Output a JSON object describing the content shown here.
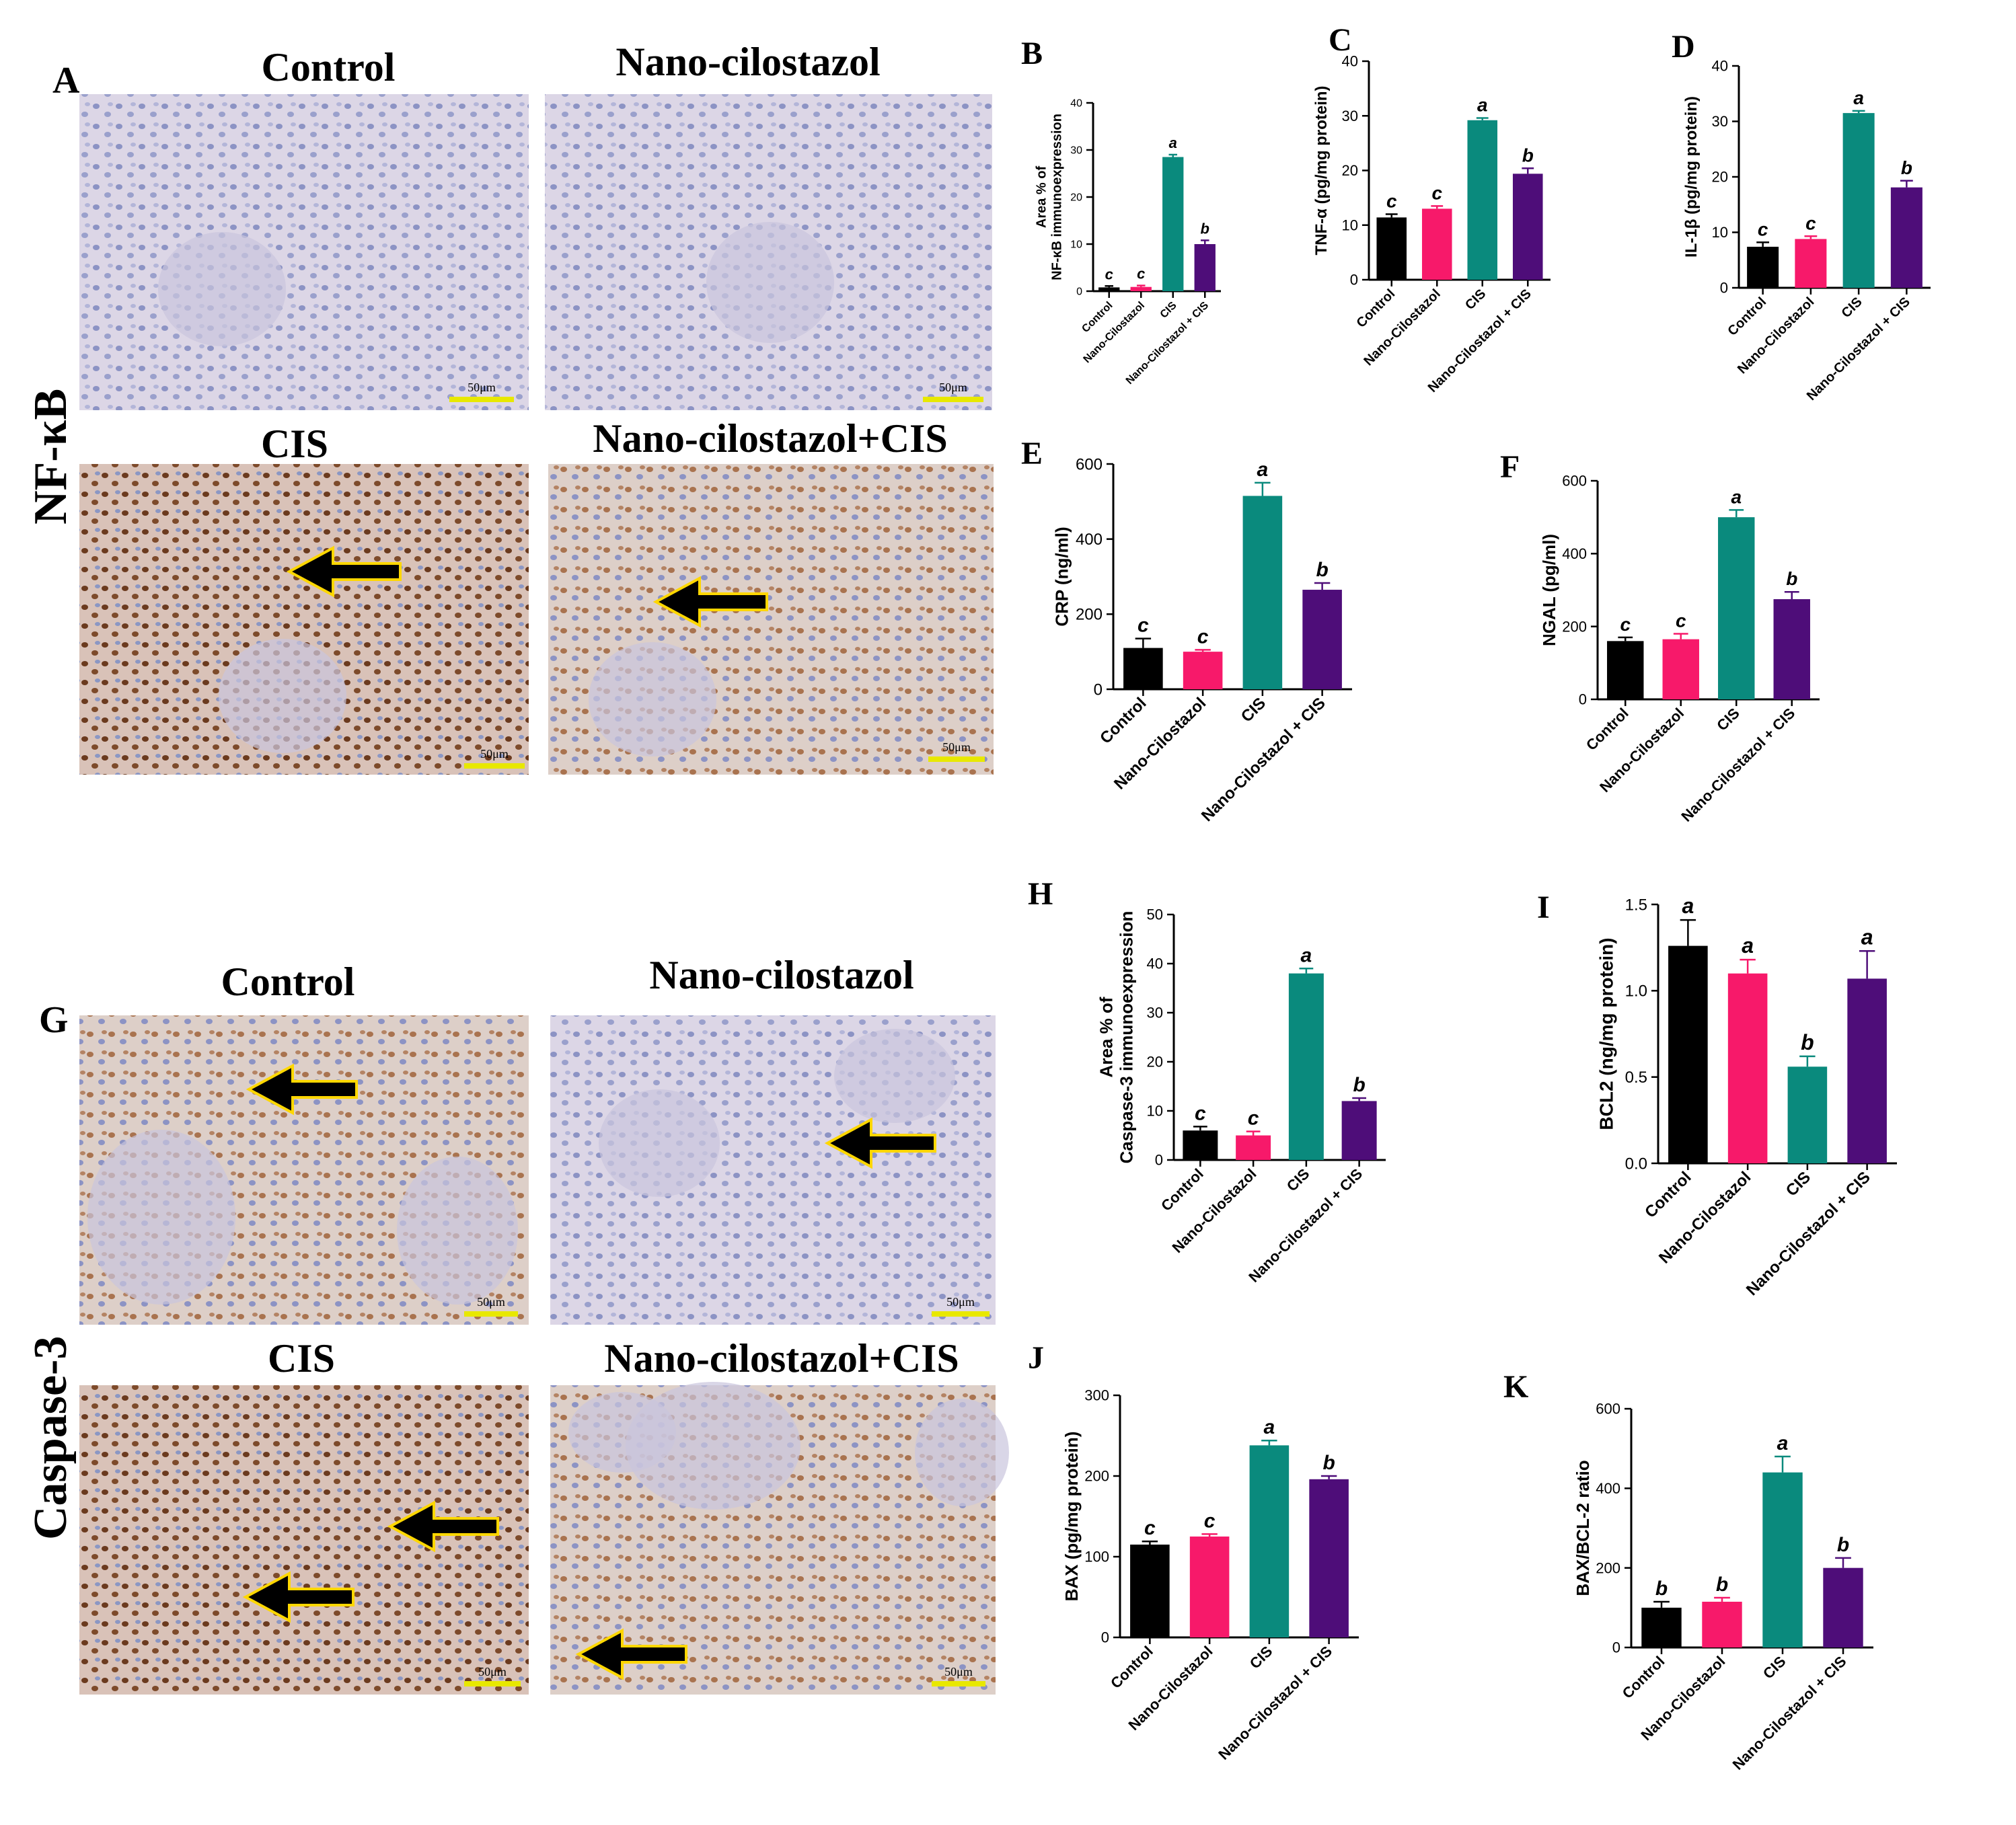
{
  "panel_letters": {
    "A": "A",
    "G": "G"
  },
  "row_labels": {
    "nfkb": "NF-κB",
    "caspase": "Caspase-3"
  },
  "micro_titles": {
    "A": [
      "Control",
      "Nano-cilostazol",
      "CIS",
      "Nano-cilostazol+CIS"
    ],
    "G": [
      "Control",
      "Nano-cilostazol",
      "CIS",
      "Nano-cilostazol+CIS"
    ]
  },
  "scale_bar_text": "50μm",
  "colors": {
    "Control": "#000000",
    "Nano-Cilostazol": "#f7196a",
    "CIS": "#0a8a7d",
    "Nano-Cilostazol + CIS": "#4e0d79",
    "tissue_bg_light": "#dcd6e6",
    "tissue_bg_stained": "#cfae9a",
    "nucleus_blue": "#5a6ab0",
    "nucleus_brown": "#6b3a1e",
    "arrow": "#000000",
    "arrow_outline": "#ffd700"
  },
  "chart_data": [
    {
      "id": "B",
      "type": "bar",
      "categories": [
        "Control",
        "Nano-Cilostazol",
        "CIS",
        "Nano-Cilostazol + CIS"
      ],
      "values": [
        0.8,
        0.9,
        28.5,
        10.0
      ],
      "errors": [
        0.3,
        0.3,
        0.5,
        0.8
      ],
      "letters": [
        "c",
        "c",
        "a",
        "b"
      ],
      "ylabel": [
        "Area % of",
        "NF-κB  immunoexpression"
      ],
      "ylim": [
        0,
        40
      ],
      "yticks": [
        "0",
        "10",
        "20",
        "30",
        "40"
      ],
      "grid": false
    },
    {
      "id": "C",
      "type": "bar",
      "categories": [
        "Control",
        "Nano-Cilostazol",
        "CIS",
        "Nano-Cilostazol + CIS"
      ],
      "values": [
        11.4,
        13.0,
        29.2,
        19.4
      ],
      "errors": [
        0.6,
        0.5,
        0.4,
        1.0
      ],
      "letters": [
        "c",
        "c",
        "a",
        "b"
      ],
      "ylabel": [
        "TNF-α (pg/mg protein)"
      ],
      "ylim": [
        0,
        40
      ],
      "yticks": [
        "0",
        "10",
        "20",
        "30",
        "40"
      ],
      "grid": false
    },
    {
      "id": "D",
      "type": "bar",
      "categories": [
        "Control",
        "Nano-Cilostazol",
        "CIS",
        "Nano-Cilostazol + CIS"
      ],
      "values": [
        7.4,
        8.8,
        31.5,
        18.1
      ],
      "errors": [
        0.8,
        0.5,
        0.4,
        1.2
      ],
      "letters": [
        "c",
        "c",
        "a",
        "b"
      ],
      "ylabel": [
        "IL-1β (pg/mg protein)"
      ],
      "ylim": [
        0,
        40
      ],
      "yticks": [
        "0",
        "10",
        "20",
        "30",
        "40"
      ],
      "grid": false
    },
    {
      "id": "E",
      "type": "bar",
      "categories": [
        "Control",
        "Nano-Cilostazol",
        "CIS",
        "Nano-Cilostazol + CIS"
      ],
      "values": [
        110,
        100,
        515,
        265
      ],
      "errors": [
        25,
        5,
        35,
        18
      ],
      "letters": [
        "c",
        "c",
        "a",
        "b"
      ],
      "ylabel": [
        "CRP (ng/ml)"
      ],
      "ylim": [
        0,
        600
      ],
      "yticks": [
        "0",
        "200",
        "400",
        "600"
      ],
      "grid": false
    },
    {
      "id": "F",
      "type": "bar",
      "categories": [
        "Control",
        "Nano-Cilostazol",
        "CIS",
        "Nano-Cilostazol + CIS"
      ],
      "values": [
        160,
        165,
        500,
        275
      ],
      "errors": [
        10,
        15,
        20,
        20
      ],
      "letters": [
        "c",
        "c",
        "a",
        "b"
      ],
      "ylabel": [
        "NGAL (pg/ml)"
      ],
      "ylim": [
        0,
        600
      ],
      "yticks": [
        "0",
        "200",
        "400",
        "600"
      ],
      "grid": false
    },
    {
      "id": "H",
      "type": "bar",
      "categories": [
        "Control",
        "Nano-Cilostazol",
        "CIS",
        "Nano-Cilostazol + CIS"
      ],
      "values": [
        6.0,
        5.0,
        38.0,
        12.0
      ],
      "errors": [
        0.8,
        0.8,
        1.0,
        0.6
      ],
      "letters": [
        "c",
        "c",
        "a",
        "b"
      ],
      "ylabel": [
        "Area % of",
        "Caspase-3 immunoexpression"
      ],
      "ylim": [
        0,
        50
      ],
      "yticks": [
        "0",
        "10",
        "20",
        "30",
        "40",
        "50"
      ],
      "grid": false
    },
    {
      "id": "I",
      "type": "bar",
      "categories": [
        "Control",
        "Nano-Cilostazol",
        "CIS",
        "Nano-Cilostazol + CIS"
      ],
      "values": [
        1.26,
        1.1,
        0.56,
        1.07
      ],
      "errors": [
        0.15,
        0.08,
        0.06,
        0.16
      ],
      "letters": [
        "a",
        "a",
        "b",
        "a"
      ],
      "ylabel": [
        "BCL2 (ng/mg protein)"
      ],
      "ylim": [
        0,
        1.5
      ],
      "yticks": [
        "0.0",
        "0.5",
        "1.0",
        "1.5"
      ],
      "grid": false
    },
    {
      "id": "J",
      "type": "bar",
      "categories": [
        "Control",
        "Nano-Cilostazol",
        "CIS",
        "Nano-Cilostazol + CIS"
      ],
      "values": [
        115,
        125,
        238,
        196
      ],
      "errors": [
        4,
        3,
        6,
        4
      ],
      "letters": [
        "c",
        "c",
        "a",
        "b"
      ],
      "ylabel": [
        "BAX (pg/mg protein)"
      ],
      "ylim": [
        0,
        300
      ],
      "yticks": [
        "0",
        "100",
        "200",
        "300"
      ],
      "grid": false
    },
    {
      "id": "K",
      "type": "bar",
      "categories": [
        "Control",
        "Nano-Cilostazol",
        "CIS",
        "Nano-Cilostazol + CIS"
      ],
      "values": [
        100,
        115,
        440,
        200
      ],
      "errors": [
        15,
        10,
        40,
        25
      ],
      "letters": [
        "b",
        "b",
        "a",
        "b"
      ],
      "ylabel": [
        "BAX/BCL-2 ratio"
      ],
      "ylim": [
        0,
        600
      ],
      "yticks": [
        "0",
        "200",
        "400",
        "600"
      ],
      "grid": false
    }
  ]
}
